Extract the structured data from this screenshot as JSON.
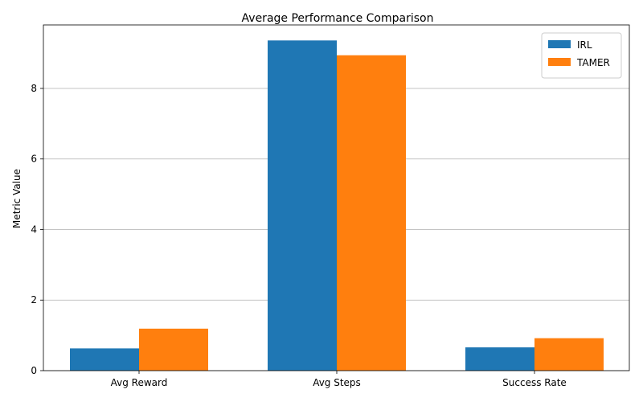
{
  "chart_data": {
    "type": "bar",
    "title": "Average Performance Comparison",
    "xlabel": "",
    "ylabel": "Metric Value",
    "categories": [
      "Avg Reward",
      "Avg Steps",
      "Success Rate"
    ],
    "series": [
      {
        "name": "IRL",
        "color": "#1f77b4",
        "values": [
          0.63,
          9.36,
          0.66
        ]
      },
      {
        "name": "TAMER",
        "color": "#ff7f0e",
        "values": [
          1.19,
          8.94,
          0.92
        ]
      }
    ],
    "ylim": [
      0,
      9.8
    ],
    "yticks": [
      0,
      2,
      4,
      6,
      8
    ],
    "grid": "y",
    "legend_position": "top-right"
  }
}
